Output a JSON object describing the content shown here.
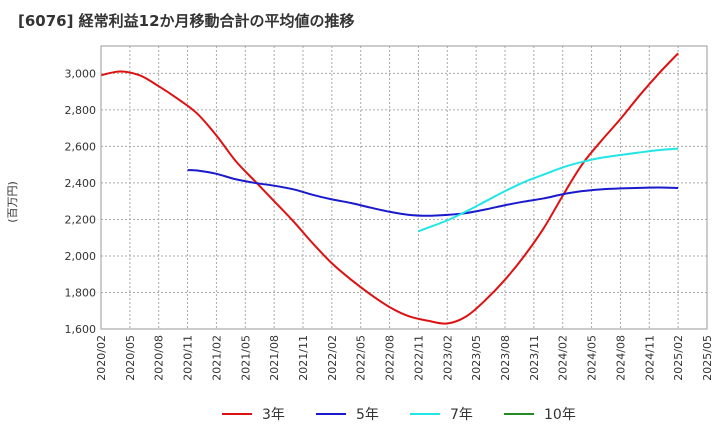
{
  "chart_data": {
    "type": "line",
    "title": "[6076]  経常利益12か月移動合計の平均値の推移",
    "ylabel": "(百万円)",
    "xlabel": "",
    "ylim": [
      1600,
      3150
    ],
    "yticks": [
      1600,
      1800,
      2000,
      2200,
      2400,
      2600,
      2800,
      3000
    ],
    "ytick_labels": [
      "1,600",
      "1,800",
      "2,000",
      "2,200",
      "2,400",
      "2,600",
      "2,800",
      "3,000"
    ],
    "xticks": [
      "2020/02",
      "2020/05",
      "2020/08",
      "2020/11",
      "2021/02",
      "2021/05",
      "2021/08",
      "2021/11",
      "2022/02",
      "2022/05",
      "2022/08",
      "2022/11",
      "2023/02",
      "2023/05",
      "2023/08",
      "2023/11",
      "2024/02",
      "2024/05",
      "2024/08",
      "2024/11",
      "2025/02",
      "2025/05"
    ],
    "grid": true,
    "legend_position": "bottom",
    "series": [
      {
        "name": "3年",
        "color": "#dd1111",
        "x": [
          "2020/02",
          "2020/04",
          "2020/06",
          "2020/08",
          "2020/10",
          "2020/12",
          "2021/02",
          "2021/04",
          "2021/06",
          "2021/08",
          "2021/10",
          "2021/12",
          "2022/02",
          "2022/04",
          "2022/06",
          "2022/08",
          "2022/10",
          "2022/12",
          "2023/02",
          "2023/04",
          "2023/06",
          "2023/08",
          "2023/10",
          "2023/12",
          "2024/02",
          "2024/04",
          "2024/06",
          "2024/08",
          "2024/10",
          "2024/12",
          "2025/02"
        ],
        "values": [
          2990,
          3010,
          2990,
          2930,
          2860,
          2780,
          2660,
          2520,
          2410,
          2300,
          2190,
          2070,
          1960,
          1870,
          1790,
          1720,
          1670,
          1645,
          1630,
          1670,
          1760,
          1870,
          2000,
          2150,
          2330,
          2500,
          2630,
          2750,
          2880,
          3000,
          3110
        ]
      },
      {
        "name": "5年",
        "color": "#1a1acc",
        "x": [
          "2020/11",
          "2020/12",
          "2021/02",
          "2021/04",
          "2021/06",
          "2021/08",
          "2021/10",
          "2021/12",
          "2022/02",
          "2022/04",
          "2022/06",
          "2022/08",
          "2022/10",
          "2022/12",
          "2023/02",
          "2023/04",
          "2023/06",
          "2023/08",
          "2023/10",
          "2023/12",
          "2024/02",
          "2024/04",
          "2024/06",
          "2024/08",
          "2024/10",
          "2024/12",
          "2025/02"
        ],
        "values": [
          2470,
          2468,
          2450,
          2420,
          2400,
          2385,
          2365,
          2335,
          2310,
          2290,
          2265,
          2242,
          2225,
          2220,
          2225,
          2235,
          2255,
          2278,
          2298,
          2315,
          2338,
          2355,
          2365,
          2370,
          2373,
          2375,
          2372
        ]
      },
      {
        "name": "7年",
        "color": "#22e5e5",
        "x": [
          "2022/11",
          "2022/12",
          "2023/02",
          "2023/04",
          "2023/06",
          "2023/08",
          "2023/10",
          "2023/12",
          "2024/02",
          "2024/04",
          "2024/06",
          "2024/08",
          "2024/10",
          "2024/12",
          "2025/02"
        ],
        "values": [
          2135,
          2155,
          2195,
          2245,
          2300,
          2355,
          2405,
          2445,
          2485,
          2515,
          2538,
          2553,
          2567,
          2580,
          2588
        ]
      },
      {
        "name": "10年",
        "color": "#228B22",
        "x": [],
        "values": []
      }
    ]
  }
}
